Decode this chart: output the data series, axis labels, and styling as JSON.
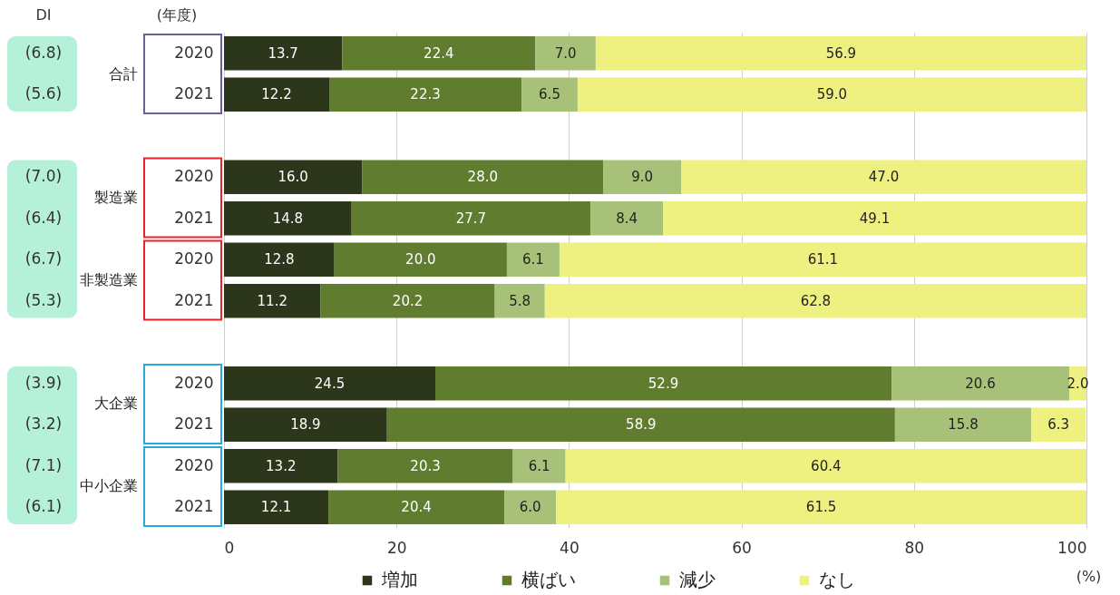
{
  "chart_data": {
    "type": "bar",
    "orientation": "horizontal",
    "stacked": true,
    "categories": [
      "2020",
      "2021",
      null,
      "2020",
      "2021",
      "2020",
      "2021",
      null,
      "2020",
      "2021",
      "2020",
      "2021"
    ],
    "y2_categories": [
      "(6.8)",
      "(5.6)",
      null,
      "(7.0)",
      "(6.4)",
      "(6.7)",
      "(5.3)",
      null,
      "(3.9)",
      "(3.2)",
      "(7.1)",
      "(6.1)"
    ],
    "series": [
      {
        "name": "増加",
        "color": "#2b361a",
        "values": [
          13.7,
          12.2,
          null,
          16.0,
          14.8,
          12.8,
          11.2,
          null,
          24.5,
          18.9,
          13.2,
          12.1
        ],
        "value_labels": [
          "13.7",
          "12.2",
          null,
          "16.0",
          "14.8",
          "12.8",
          "11.2",
          null,
          "24.5",
          "18.9",
          "13.2",
          "12.1"
        ]
      },
      {
        "name": "横ばい",
        "color": "#5f7c2f",
        "values": [
          22.4,
          22.3,
          null,
          28.0,
          27.7,
          20.0,
          20.2,
          null,
          52.9,
          58.9,
          20.3,
          20.4
        ],
        "value_labels": [
          "22.4",
          "22.3",
          null,
          "28.0",
          "27.7",
          "20.0",
          "20.2",
          null,
          "52.9",
          "58.9",
          "20.3",
          "20.4"
        ]
      },
      {
        "name": "減少",
        "color": "#a8c178",
        "values": [
          7.0,
          6.5,
          null,
          9.0,
          8.4,
          6.1,
          5.8,
          null,
          20.6,
          15.8,
          6.1,
          6.0
        ],
        "value_labels": [
          "7.0",
          "6.5",
          null,
          "9.0",
          "8.4",
          "6.1",
          "5.8",
          null,
          "20.6",
          "15.8",
          "6.1",
          "6.0"
        ]
      },
      {
        "name": "なし",
        "color": "#eef080",
        "values": [
          56.9,
          59.0,
          null,
          47.0,
          49.1,
          61.1,
          62.8,
          null,
          2.0,
          6.3,
          60.4,
          61.5
        ],
        "value_labels": [
          "56.9",
          "59.0",
          null,
          "47.0",
          "49.1",
          "61.1",
          "62.8",
          null,
          "2.0",
          "6.3",
          "60.4",
          "61.5"
        ]
      }
    ],
    "xlabel": "(%)",
    "xlim": [
      0,
      100
    ],
    "xticks": [
      0,
      20,
      40,
      60,
      80,
      100
    ],
    "grid": "x",
    "legend": "bottom",
    "annotations": [
      "DI",
      "(年度)",
      "合計",
      "製造業",
      "非製造業",
      "大企業",
      "中小企業"
    ]
  }
}
